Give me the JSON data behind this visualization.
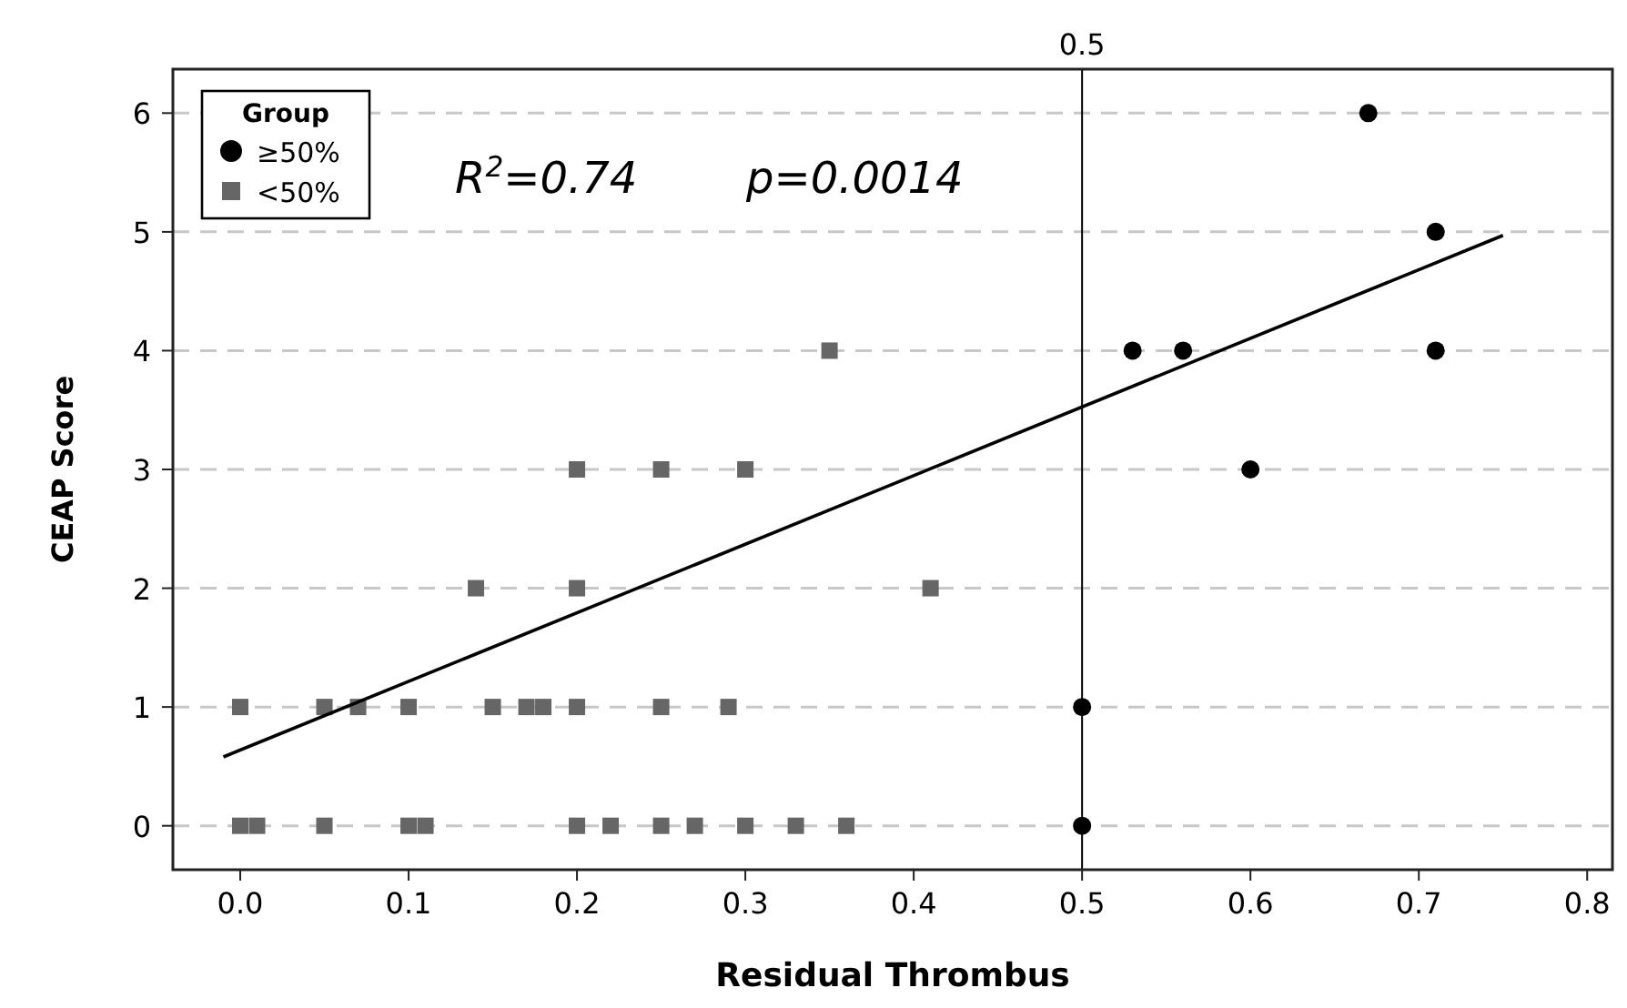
{
  "chart_data": {
    "type": "scatter",
    "xlabel": "Residual Thrombus",
    "ylabel": "CEAP Score",
    "legend_title": "Group",
    "legend": "top left",
    "grid": "y",
    "xlim": [
      -0.04,
      0.815
    ],
    "ylim": [
      -0.37,
      6.37
    ],
    "xticks": [
      {
        "value": 0,
        "label": "0.0"
      },
      0.1,
      0.2,
      0.3,
      0.4,
      0.5,
      0.6,
      0.7,
      {
        "value": 0.8,
        "label": "0.8"
      }
    ],
    "yticks": [
      0,
      1,
      2,
      3,
      4,
      5,
      6
    ],
    "ref_lines": [
      {
        "axis": "x",
        "value": 0.5,
        "label": "0.5",
        "color": "#000000",
        "line_style": "solid"
      }
    ],
    "annotations": [
      "R$^{2}$=0.74",
      "p=0.0014"
    ],
    "series": [
      {
        "name": "≥50%",
        "color": "#000000",
        "marker": "circle",
        "x": [
          0.5,
          0.5,
          0.53,
          0.56,
          0.6,
          0.67,
          0.71,
          0.71
        ],
        "values": [
          0,
          1,
          4,
          4,
          3,
          6,
          5,
          4
        ]
      },
      {
        "name": "<50%",
        "color": "#666666",
        "marker": "square",
        "x": [
          0,
          0.01,
          0.05,
          0.1,
          0.11,
          0.2,
          0.22,
          0.25,
          0.27,
          0.3,
          0.33,
          0.36,
          0,
          0.05,
          0.07,
          0.1,
          0.15,
          0.17,
          0.18,
          0.2,
          0.25,
          0.29,
          0.14,
          0.2,
          0.41,
          0.2,
          0.25,
          0.3,
          0.35
        ],
        "values": [
          0,
          0,
          0,
          0,
          0,
          0,
          0,
          0,
          0,
          0,
          0,
          0,
          1,
          1,
          1,
          1,
          1,
          1,
          1,
          1,
          1,
          1,
          2,
          2,
          2,
          3,
          3,
          3,
          4
        ]
      },
      {
        "type": "line",
        "color": "#000000",
        "marker": "none",
        "line_style": "solid",
        "x": [
          -0.01,
          0.75
        ],
        "values": [
          0.58,
          4.97
        ]
      }
    ]
  }
}
